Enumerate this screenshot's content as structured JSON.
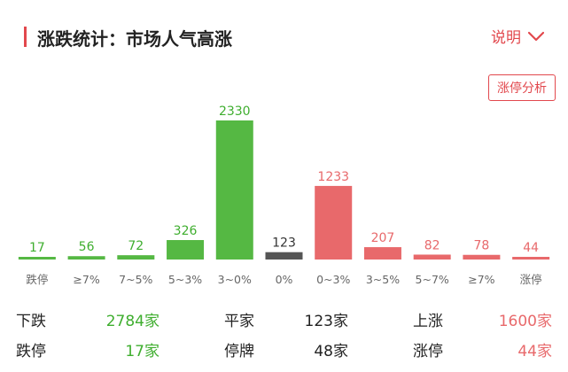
{
  "header": {
    "title": "涨跌统计：市场人气高涨",
    "explain_label": "说明",
    "analysis_button": "涨停分析"
  },
  "colors": {
    "accent": "#e2484d",
    "up": "#e8696b",
    "down": "#55b843",
    "flat": "#555555",
    "up_text": "#e8696b",
    "down_text": "#3fae2f"
  },
  "chart_data": {
    "type": "bar",
    "categories": [
      "跌停",
      "≥7%",
      "7~5%",
      "5~3%",
      "3~0%",
      "0%",
      "0~3%",
      "3~5%",
      "5~7%",
      "≥7%",
      "涨停"
    ],
    "values": [
      17,
      56,
      72,
      326,
      2330,
      123,
      1233,
      207,
      82,
      78,
      44
    ],
    "value_labels": [
      "17",
      "56",
      "72",
      "326",
      "2330",
      "123",
      "1233",
      "207",
      "82",
      "78",
      "44"
    ],
    "bar_colors": [
      "down",
      "down",
      "down",
      "down",
      "down",
      "flat",
      "up",
      "up",
      "up",
      "up",
      "up"
    ],
    "ylim": [
      0,
      2330
    ]
  },
  "stats": {
    "fall_label": "下跌",
    "fall_value": "2784家",
    "flat_label": "平家",
    "flat_value": "123家",
    "rise_label": "上涨",
    "rise_value": "1600家",
    "limit_down_label": "跌停",
    "limit_down_value": "17家",
    "suspended_label": "停牌",
    "suspended_value": "48家",
    "limit_up_label": "涨停",
    "limit_up_value": "44家"
  }
}
